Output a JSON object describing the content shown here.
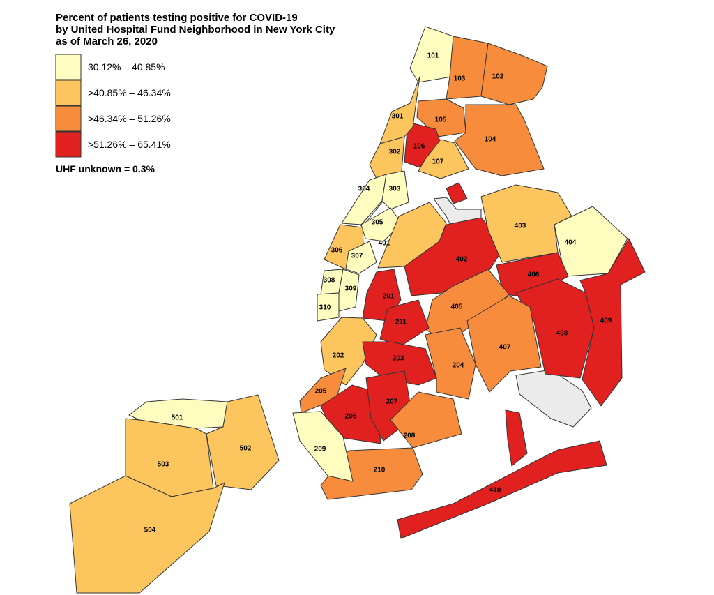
{
  "title": [
    "Percent of patients testing positive for COVID-19",
    "by United Hospital Fund Neighborhood in New York City",
    "as of March 26, 2020"
  ],
  "legend": [
    {
      "label": "30.12% – 40.85%",
      "color": "#fefcbf"
    },
    {
      "label": ">40.85% – 46.34%",
      "color": "#fdc55e"
    },
    {
      "label": ">46.34% – 51.26%",
      "color": "#f68c3c"
    },
    {
      "label": ">51.26% – 65.41%",
      "color": "#e0211f"
    }
  ],
  "note": "UHF unknown = 0.3%",
  "regions": [
    {
      "label": "101",
      "color": "#fefcbf"
    },
    {
      "label": "103",
      "color": "#f68c3c"
    },
    {
      "label": "102",
      "color": "#f68c3c"
    },
    {
      "label": "105",
      "color": "#f68c3c"
    },
    {
      "label": "104",
      "color": "#f68c3c"
    },
    {
      "label": "106",
      "color": "#e0211f"
    },
    {
      "label": "107",
      "color": "#fdc55e"
    },
    {
      "label": "301",
      "color": "#fdc55e"
    },
    {
      "label": "302",
      "color": "#fdc55e"
    },
    {
      "label": "304",
      "color": "#fefcbf"
    },
    {
      "label": "303",
      "color": "#fefcbf"
    },
    {
      "label": "305",
      "color": "#fefcbf"
    },
    {
      "label": "306",
      "color": "#fdc55e"
    },
    {
      "label": "307",
      "color": "#fefcbf"
    },
    {
      "label": "308",
      "color": "#fefcbf"
    },
    {
      "label": "309",
      "color": "#fefcbf"
    },
    {
      "label": "310",
      "color": "#fefcbf"
    },
    {
      "label": "401",
      "color": "#fdc55e"
    },
    {
      "label": "402",
      "color": "#e0211f"
    },
    {
      "label": "403",
      "color": "#fdc55e"
    },
    {
      "label": "404",
      "color": "#fefcbf"
    },
    {
      "label": "406",
      "color": "#e0211f"
    },
    {
      "label": "405",
      "color": "#f68c3c"
    },
    {
      "label": "408",
      "color": "#e0211f"
    },
    {
      "label": "409",
      "color": "#e0211f"
    },
    {
      "label": "407",
      "color": "#f68c3c"
    },
    {
      "label": "410",
      "color": "#e0211f"
    },
    {
      "label": "201",
      "color": "#e0211f"
    },
    {
      "label": "211",
      "color": "#e0211f"
    },
    {
      "label": "202",
      "color": "#fdc55e"
    },
    {
      "label": "203",
      "color": "#e0211f"
    },
    {
      "label": "204",
      "color": "#f68c3c"
    },
    {
      "label": "205",
      "color": "#f68c3c"
    },
    {
      "label": "206",
      "color": "#e0211f"
    },
    {
      "label": "207",
      "color": "#e0211f"
    },
    {
      "label": "208",
      "color": "#f68c3c"
    },
    {
      "label": "210",
      "color": "#f68c3c"
    },
    {
      "label": "209",
      "color": "#fefcbf"
    },
    {
      "label": "501",
      "color": "#fefcbf"
    },
    {
      "label": "502",
      "color": "#fdc55e"
    },
    {
      "label": "503",
      "color": "#fdc55e"
    },
    {
      "label": "504",
      "color": "#fdc55e"
    }
  ]
}
